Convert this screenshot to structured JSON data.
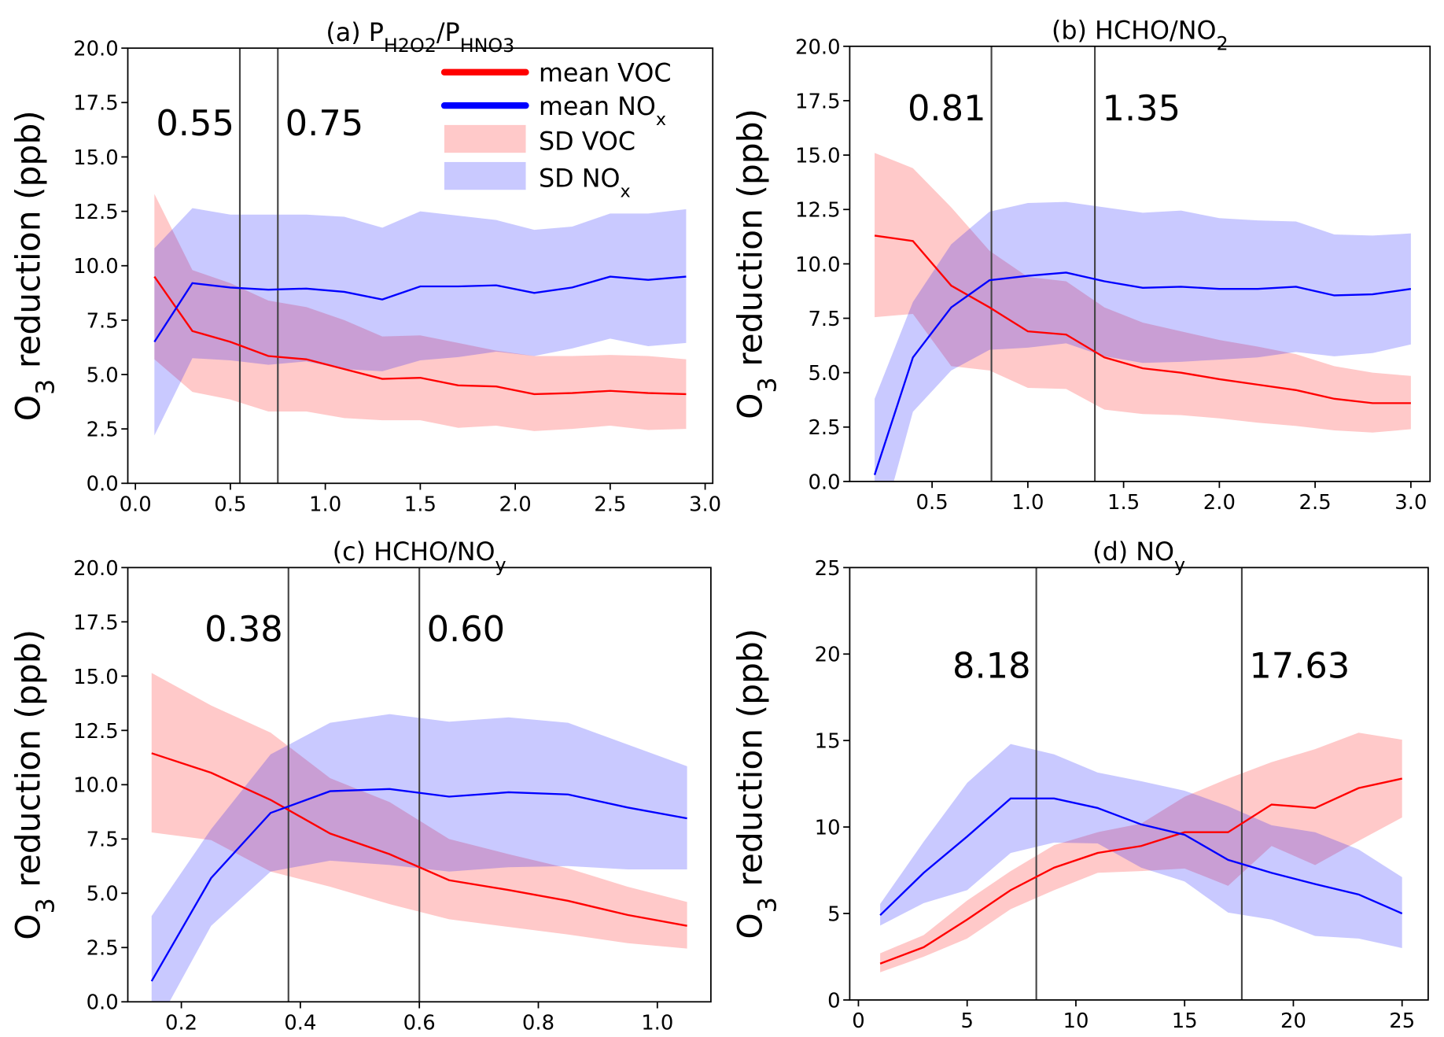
{
  "colors": {
    "voc": "#ff0000",
    "nox": "#0000ff",
    "sd_voc": "#ff0000",
    "sd_nox": "#0000ff",
    "threshold": "#444444"
  },
  "legend": {
    "placement": "top-right of panel (a)",
    "entries": [
      {
        "label": "mean VOC",
        "type": "line",
        "color": "#ff0000"
      },
      {
        "label": "mean NO",
        "sub": "x",
        "type": "line",
        "color": "#0000ff"
      },
      {
        "label": "SD VOC",
        "type": "band",
        "color": "#ff0000"
      },
      {
        "label": "SD NO",
        "sub": "x",
        "type": "band",
        "color": "#0000ff"
      }
    ]
  },
  "chart_data": [
    {
      "type": "line",
      "title": [
        {
          "t": "(a) P"
        },
        {
          "t": "H2O2",
          "sub": true
        },
        {
          "t": "/P"
        },
        {
          "t": "HNO3",
          "sub": true
        }
      ],
      "ylabel": [
        {
          "t": "O"
        },
        {
          "t": "3",
          "sub": true
        },
        {
          "t": " reduction (ppb)"
        }
      ],
      "xlim": [
        -0.04,
        3.04
      ],
      "ylim": [
        0,
        20
      ],
      "xticks": [
        "0.0",
        "0.5",
        "1.0",
        "1.5",
        "2.0",
        "2.5",
        "3.0"
      ],
      "yticks": [
        "0.0",
        "2.5",
        "5.0",
        "7.5",
        "10.0",
        "12.5",
        "15.0",
        "17.5",
        "20.0"
      ],
      "thresholds": [
        {
          "x": 0.55,
          "label": "0.55"
        },
        {
          "x": 0.75,
          "label": "0.75"
        }
      ],
      "x": [
        0.1,
        0.3,
        0.5,
        0.7,
        0.9,
        1.1,
        1.3,
        1.5,
        1.7,
        1.9,
        2.1,
        2.3,
        2.5,
        2.7,
        2.9
      ],
      "series": [
        {
          "name": "mean VOC",
          "values": [
            9.5,
            7.0,
            6.5,
            5.85,
            5.7,
            5.25,
            4.8,
            4.85,
            4.5,
            4.45,
            4.1,
            4.15,
            4.25,
            4.15,
            4.1
          ],
          "sd_upper": [
            13.3,
            9.8,
            9.2,
            8.4,
            8.1,
            7.5,
            6.75,
            6.8,
            6.45,
            6.1,
            5.85,
            5.85,
            5.9,
            5.85,
            5.7
          ],
          "sd_lower": [
            5.7,
            4.2,
            3.85,
            3.3,
            3.3,
            3.0,
            2.9,
            2.9,
            2.55,
            2.65,
            2.4,
            2.5,
            2.65,
            2.45,
            2.5
          ]
        },
        {
          "name": "mean NOx",
          "values": [
            6.5,
            9.2,
            9.0,
            8.9,
            8.95,
            8.8,
            8.45,
            9.05,
            9.05,
            9.1,
            8.75,
            9.0,
            9.5,
            9.35,
            9.5
          ],
          "sd_upper": [
            10.8,
            12.65,
            12.35,
            12.35,
            12.35,
            12.25,
            11.75,
            12.5,
            12.3,
            12.1,
            11.65,
            11.8,
            12.4,
            12.4,
            12.6
          ],
          "sd_lower": [
            2.2,
            5.75,
            5.65,
            5.45,
            5.6,
            5.25,
            5.15,
            5.65,
            5.8,
            6.05,
            5.85,
            6.2,
            6.65,
            6.3,
            6.45
          ]
        }
      ]
    },
    {
      "type": "line",
      "title": [
        {
          "t": "(b) HCHO/NO"
        },
        {
          "t": "2",
          "sub": true
        }
      ],
      "ylabel": [
        {
          "t": "O"
        },
        {
          "t": "3",
          "sub": true
        },
        {
          "t": " reduction (ppb)"
        }
      ],
      "xlim": [
        0.07,
        3.1
      ],
      "ylim": [
        0,
        20
      ],
      "xticks": [
        "0.5",
        "1.0",
        "1.5",
        "2.0",
        "2.5",
        "3.0"
      ],
      "yticks": [
        "0.0",
        "2.5",
        "5.0",
        "7.5",
        "10.0",
        "12.5",
        "15.0",
        "17.5",
        "20.0"
      ],
      "thresholds": [
        {
          "x": 0.81,
          "label": "0.81"
        },
        {
          "x": 1.35,
          "label": "1.35"
        }
      ],
      "x": [
        0.2,
        0.4,
        0.6,
        0.8,
        1.0,
        1.2,
        1.4,
        1.6,
        1.8,
        2.0,
        2.2,
        2.4,
        2.6,
        2.8,
        3.0
      ],
      "series": [
        {
          "name": "mean VOC",
          "values": [
            11.3,
            11.05,
            9.0,
            8.0,
            6.9,
            6.75,
            5.7,
            5.2,
            5.0,
            4.7,
            4.45,
            4.2,
            3.8,
            3.6,
            3.6
          ],
          "sd_upper": [
            15.1,
            14.4,
            12.6,
            10.6,
            9.4,
            9.2,
            8.0,
            7.3,
            6.9,
            6.5,
            6.2,
            5.85,
            5.3,
            5.0,
            4.85
          ],
          "sd_lower": [
            7.55,
            7.7,
            5.3,
            5.1,
            4.3,
            4.25,
            3.3,
            3.1,
            3.05,
            2.9,
            2.7,
            2.55,
            2.35,
            2.25,
            2.4
          ]
        },
        {
          "name": "mean NOx",
          "values": [
            0.3,
            5.7,
            8.0,
            9.25,
            9.45,
            9.6,
            9.2,
            8.9,
            8.95,
            8.85,
            8.85,
            8.95,
            8.55,
            8.6,
            8.85
          ],
          "sd_upper": [
            3.8,
            8.25,
            10.9,
            12.4,
            12.8,
            12.85,
            12.6,
            12.35,
            12.45,
            12.1,
            12.0,
            11.95,
            11.35,
            11.3,
            11.4
          ],
          "sd_lower": [
            -3.2,
            3.2,
            5.1,
            6.05,
            6.15,
            6.35,
            5.75,
            5.45,
            5.5,
            5.6,
            5.7,
            5.95,
            5.75,
            5.9,
            6.3
          ]
        }
      ]
    },
    {
      "type": "line",
      "title": [
        {
          "t": "(c) HCHO/NO"
        },
        {
          "t": "y",
          "sub": true
        }
      ],
      "ylabel": [
        {
          "t": "O"
        },
        {
          "t": "3",
          "sub": true
        },
        {
          "t": " reduction (ppb)"
        }
      ],
      "xlim": [
        0.11,
        1.09
      ],
      "ylim": [
        0,
        20
      ],
      "xticks": [
        "0.2",
        "0.4",
        "0.6",
        "0.8",
        "1.0"
      ],
      "yticks": [
        "0.0",
        "2.5",
        "5.0",
        "7.5",
        "10.0",
        "12.5",
        "15.0",
        "17.5",
        "20.0"
      ],
      "thresholds": [
        {
          "x": 0.38,
          "label": "0.38"
        },
        {
          "x": 0.6,
          "label": "0.60"
        }
      ],
      "x": [
        0.15,
        0.25,
        0.35,
        0.45,
        0.55,
        0.65,
        0.75,
        0.85,
        0.95,
        1.05
      ],
      "series": [
        {
          "name": "mean VOC",
          "values": [
            11.45,
            10.55,
            9.3,
            7.75,
            6.8,
            5.6,
            5.15,
            4.65,
            4.0,
            3.5
          ],
          "sd_upper": [
            15.15,
            13.65,
            12.4,
            10.3,
            9.2,
            7.5,
            6.8,
            6.15,
            5.3,
            4.6
          ],
          "sd_lower": [
            7.8,
            7.45,
            6.0,
            5.3,
            4.5,
            3.8,
            3.45,
            3.1,
            2.7,
            2.45
          ]
        },
        {
          "name": "mean NOx",
          "values": [
            0.95,
            5.7,
            8.7,
            9.7,
            9.8,
            9.45,
            9.65,
            9.55,
            8.95,
            8.45
          ],
          "sd_upper": [
            3.95,
            7.95,
            11.4,
            12.85,
            13.25,
            12.9,
            13.1,
            12.85,
            11.85,
            10.85
          ],
          "sd_lower": [
            -1.5,
            3.5,
            6.0,
            6.5,
            6.3,
            6.0,
            6.2,
            6.25,
            6.1,
            6.1
          ]
        }
      ]
    },
    {
      "type": "line",
      "title": [
        {
          "t": "(d) NO"
        },
        {
          "t": "y",
          "sub": true
        }
      ],
      "ylabel": [
        {
          "t": "O"
        },
        {
          "t": "3",
          "sub": true
        },
        {
          "t": " reduction (ppb)"
        }
      ],
      "xlim": [
        -0.4,
        26.2
      ],
      "ylim": [
        0,
        25
      ],
      "xticks": [
        "0",
        "5",
        "10",
        "15",
        "20",
        "25"
      ],
      "yticks": [
        "0",
        "5",
        "10",
        "15",
        "20",
        "25"
      ],
      "thresholds": [
        {
          "x": 8.18,
          "label": "8.18"
        },
        {
          "x": 17.63,
          "label": "17.63"
        }
      ],
      "x": [
        1,
        3,
        5,
        7,
        9,
        11,
        13,
        15,
        17,
        19,
        21,
        23,
        25
      ],
      "series": [
        {
          "name": "mean VOC",
          "values": [
            2.1,
            3.05,
            4.65,
            6.35,
            7.65,
            8.5,
            8.9,
            9.7,
            9.7,
            11.3,
            11.1,
            12.25,
            12.8
          ],
          "sd_upper": [
            2.7,
            3.75,
            5.75,
            7.45,
            8.95,
            9.7,
            10.2,
            11.75,
            12.8,
            13.75,
            14.5,
            15.45,
            15.05
          ],
          "sd_lower": [
            1.6,
            2.5,
            3.55,
            5.25,
            6.35,
            7.35,
            7.45,
            7.6,
            6.6,
            8.9,
            7.8,
            9.2,
            10.55
          ]
        },
        {
          "name": "mean NOx",
          "values": [
            4.9,
            7.35,
            9.45,
            11.65,
            11.65,
            11.1,
            10.15,
            9.55,
            8.1,
            7.35,
            6.7,
            6.1,
            5.0
          ],
          "sd_upper": [
            5.55,
            9.15,
            12.55,
            14.8,
            14.2,
            13.15,
            12.65,
            12.1,
            11.2,
            10.1,
            9.7,
            8.7,
            7.1
          ],
          "sd_lower": [
            4.3,
            5.6,
            6.35,
            8.5,
            9.1,
            9.05,
            7.65,
            6.85,
            5.05,
            4.65,
            3.7,
            3.55,
            3.0
          ]
        }
      ]
    }
  ]
}
